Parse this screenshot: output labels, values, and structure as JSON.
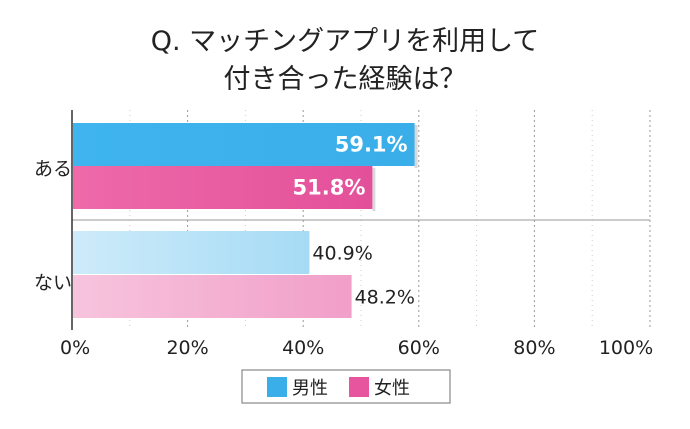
{
  "chart_data": {
    "type": "bar",
    "orientation": "horizontal",
    "title_lines": [
      "Q. マッチングアプリを利用して",
      "付き合った経験は？"
    ],
    "categories": [
      "ある",
      "ない"
    ],
    "series": [
      {
        "name": "男性",
        "values": [
          59.1,
          40.9
        ],
        "labels": [
          "59.1%",
          "40.9%"
        ]
      },
      {
        "name": "女性",
        "values": [
          51.8,
          48.2
        ],
        "labels": [
          "51.8%",
          "48.2%"
        ]
      }
    ],
    "xlim": [
      0,
      100
    ],
    "xticks": [
      "0%",
      "20%",
      "40%",
      "60%",
      "80%",
      "100%"
    ],
    "grid": true,
    "legend_position": "bottom"
  },
  "colors": {
    "male_strong": "#3aaee8",
    "male_light": "#a9dbf5",
    "female_strong": "#e6559d",
    "female_light": "#f3a6cc",
    "grid": "#9a9a9a",
    "axis": "#333333"
  }
}
